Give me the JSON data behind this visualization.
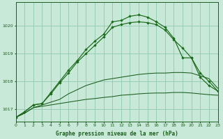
{
  "title": "Graphe pression niveau de la mer (hPa)",
  "background_color": "#c8e8d8",
  "plot_bg_color": "#c8e8d8",
  "grid_color": "#90c8b0",
  "line_color_dark": "#1a5c1a",
  "line_color_marker": "#1a6b1a",
  "xlim": [
    0,
    23
  ],
  "ylim": [
    1016.55,
    1020.85
  ],
  "yticks": [
    1017,
    1018,
    1019,
    1020
  ],
  "xticks": [
    0,
    1,
    2,
    3,
    4,
    5,
    6,
    7,
    8,
    9,
    10,
    11,
    12,
    13,
    14,
    15,
    16,
    17,
    18,
    19,
    20,
    21,
    22,
    23
  ],
  "s1_x": [
    0,
    1,
    2,
    3,
    4,
    5,
    6,
    7,
    8,
    9,
    10,
    11,
    12,
    13,
    14,
    15,
    16,
    17,
    18,
    19,
    20,
    21,
    22,
    23
  ],
  "s1_y": [
    1016.7,
    1016.85,
    1017.05,
    1017.1,
    1017.15,
    1017.2,
    1017.25,
    1017.3,
    1017.35,
    1017.38,
    1017.42,
    1017.45,
    1017.5,
    1017.52,
    1017.55,
    1017.57,
    1017.58,
    1017.58,
    1017.6,
    1017.6,
    1017.58,
    1017.55,
    1017.52,
    1017.5
  ],
  "s2_x": [
    0,
    1,
    2,
    3,
    4,
    5,
    6,
    7,
    8,
    9,
    10,
    11,
    12,
    13,
    14,
    15,
    16,
    17,
    18,
    19,
    20,
    21,
    22,
    23
  ],
  "s2_y": [
    1016.7,
    1016.85,
    1017.05,
    1017.15,
    1017.25,
    1017.35,
    1017.55,
    1017.7,
    1017.85,
    1017.95,
    1018.05,
    1018.1,
    1018.15,
    1018.2,
    1018.25,
    1018.28,
    1018.3,
    1018.3,
    1018.32,
    1018.32,
    1018.3,
    1018.2,
    1018.1,
    1017.75
  ],
  "s3_x": [
    0,
    1,
    2,
    3,
    4,
    5,
    6,
    7,
    8,
    9,
    10,
    11,
    12,
    13,
    14,
    15,
    16,
    17,
    18,
    19,
    20,
    21,
    22,
    23
  ],
  "s3_y": [
    1016.7,
    1016.9,
    1017.15,
    1017.2,
    1017.55,
    1017.95,
    1018.3,
    1018.7,
    1019.0,
    1019.3,
    1019.6,
    1019.95,
    1020.05,
    1020.12,
    1020.15,
    1020.12,
    1020.05,
    1019.85,
    1019.5,
    1019.2,
    1018.85,
    1018.3,
    1018.0,
    1017.65
  ],
  "s4_x": [
    0,
    1,
    2,
    3,
    4,
    5,
    6,
    7,
    8,
    9,
    10,
    11,
    12,
    13,
    14,
    15,
    16,
    17,
    18,
    19,
    20,
    21,
    22,
    23
  ],
  "s4_y": [
    1016.7,
    1016.9,
    1017.15,
    1017.2,
    1017.6,
    1018.0,
    1018.4,
    1018.75,
    1019.15,
    1019.45,
    1019.7,
    1020.15,
    1020.2,
    1020.35,
    1020.4,
    1020.32,
    1020.15,
    1019.95,
    1019.55,
    1018.85,
    1018.85,
    1018.15,
    1017.85,
    1017.65
  ]
}
